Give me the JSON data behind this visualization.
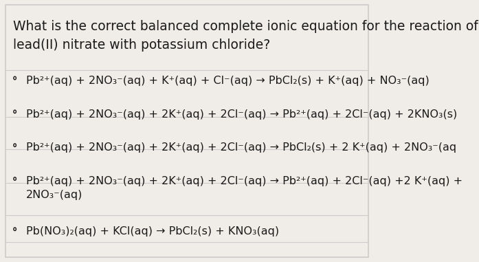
{
  "background_color": "#f0ede8",
  "border_color": "#cccccc",
  "title": "What is the correct balanced complete ionic equation for the reaction of\nlead(II) nitrate with potassium chloride?",
  "title_fontsize": 13.5,
  "title_color": "#1a1a1a",
  "options": [
    "Pb²⁺(aq) + 2NO₃⁻(aq) + K⁺(aq) + Cl⁻(aq) → PbCl₂(s) + K⁺(aq) + NO₃⁻(aq)",
    "Pb²⁺(aq) + 2NO₃⁻(aq) + 2K⁺(aq) + 2Cl⁻(aq) → Pb²⁺(aq) + 2Cl⁻(aq) + 2KNO₃(s)",
    "Pb²⁺(aq) + 2NO₃⁻(aq) + 2K⁺(aq) + 2Cl⁻(aq) → PbCl₂(s) + 2 K⁺(aq) + 2NO₃⁻(aq",
    "Pb²⁺(aq) + 2NO₃⁻(aq) + 2K⁺(aq) + 2Cl⁻(aq) → Pb²⁺(aq) + 2Cl⁻(aq) +2 K⁺(aq) +\n2NO₃⁻(aq)",
    "Pb(NO₃)₂(aq) + KCl(aq) → PbCl₂(s) + KNO₃(aq)"
  ],
  "option_fontsize": 11.5,
  "option_color": "#1a1a1a",
  "circle_color": "#1a1a1a",
  "divider_color": "#cccccc",
  "fig_width": 6.97,
  "fig_height": 3.81
}
